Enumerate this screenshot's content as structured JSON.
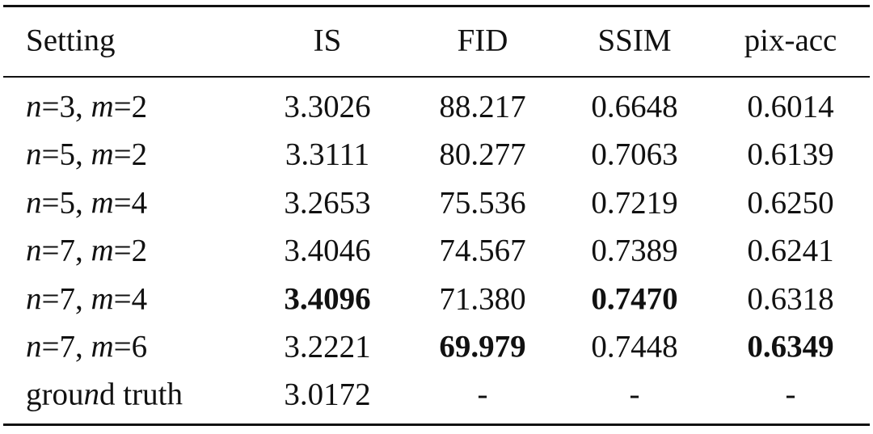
{
  "table": {
    "header": [
      "Setting",
      "IS",
      "FID",
      "SSIM",
      "pix-acc"
    ],
    "italic_letters": [
      "n",
      "m"
    ],
    "rows": [
      {
        "cells": [
          "n=3, m=2",
          "3.3026",
          "88.217",
          "0.6648",
          "0.6014"
        ],
        "bold": []
      },
      {
        "cells": [
          "n=5, m=2",
          "3.3111",
          "80.277",
          "0.7063",
          "0.6139"
        ],
        "bold": []
      },
      {
        "cells": [
          "n=5, m=4",
          "3.2653",
          "75.536",
          "0.7219",
          "0.6250"
        ],
        "bold": []
      },
      {
        "cells": [
          "n=7, m=2",
          "3.4046",
          "74.567",
          "0.7389",
          "0.6241"
        ],
        "bold": []
      },
      {
        "cells": [
          "n=7, m=4",
          "3.4096",
          "71.380",
          "0.7470",
          "0.6318"
        ],
        "bold": [
          1,
          3
        ]
      },
      {
        "cells": [
          "n=7, m=6",
          "3.2221",
          "69.979",
          "0.7448",
          "0.6349"
        ],
        "bold": [
          2,
          4
        ]
      },
      {
        "cells": [
          "ground truth",
          "3.0172",
          "-",
          "-",
          "-"
        ],
        "bold": []
      }
    ]
  }
}
